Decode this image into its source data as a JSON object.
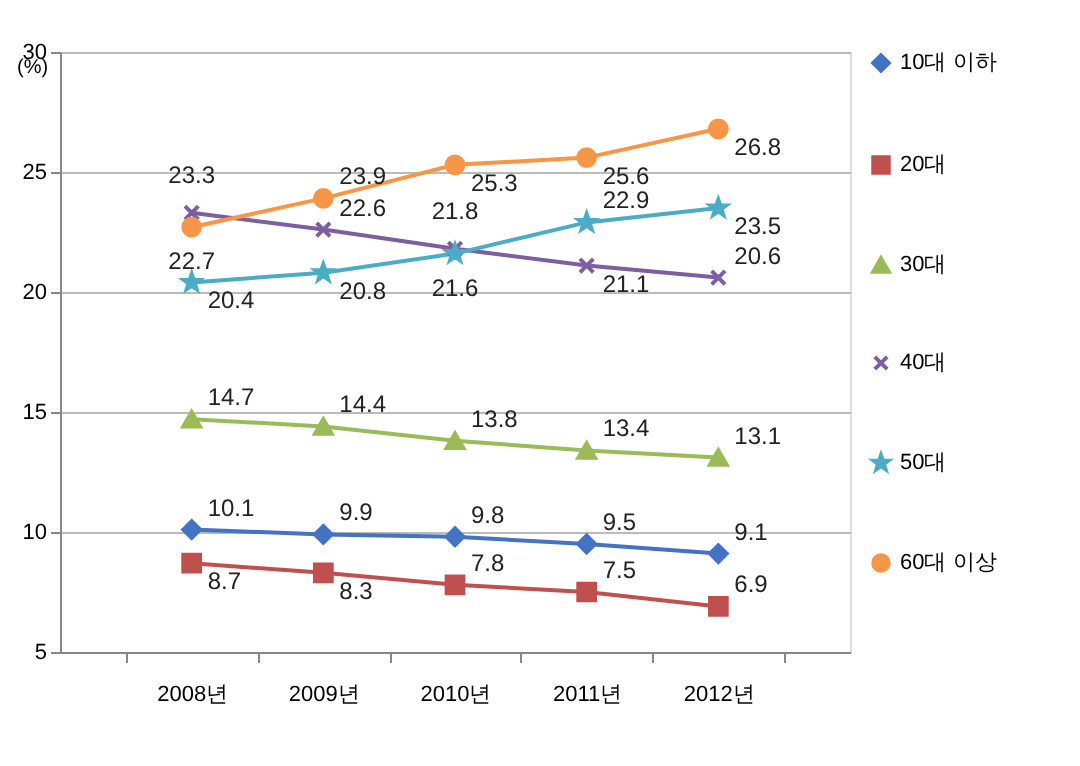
{
  "chart_data": {
    "type": "line",
    "ylabel": "(%)",
    "categories": [
      "2008년",
      "2009년",
      "2010년",
      "2011년",
      "2012년"
    ],
    "series": [
      {
        "name": "10대 이하",
        "color": "#4472c4",
        "marker": "diamond",
        "values": [
          10.1,
          9.9,
          9.8,
          9.5,
          9.1
        ]
      },
      {
        "name": "20대",
        "color": "#c0504d",
        "marker": "square",
        "values": [
          8.7,
          8.3,
          7.8,
          7.5,
          6.9
        ]
      },
      {
        "name": "30대",
        "color": "#9bbb59",
        "marker": "triangle",
        "values": [
          14.7,
          14.4,
          13.8,
          13.4,
          13.1
        ]
      },
      {
        "name": "40대",
        "color": "#7d5fa0",
        "marker": "cross",
        "values": [
          23.3,
          22.6,
          21.8,
          21.1,
          20.6
        ]
      },
      {
        "name": "50대",
        "color": "#4bacc6",
        "marker": "star",
        "values": [
          20.4,
          20.8,
          21.6,
          22.9,
          23.5
        ]
      },
      {
        "name": "60대 이상",
        "color": "#f79646",
        "marker": "circle",
        "values": [
          22.7,
          23.9,
          25.3,
          25.6,
          26.8
        ]
      }
    ],
    "ylim": [
      5,
      30
    ],
    "yticks": [
      5,
      10,
      15,
      20,
      25,
      30
    ],
    "grid": "y",
    "legend": "right",
    "data_labels": true,
    "line_style": "solid"
  }
}
